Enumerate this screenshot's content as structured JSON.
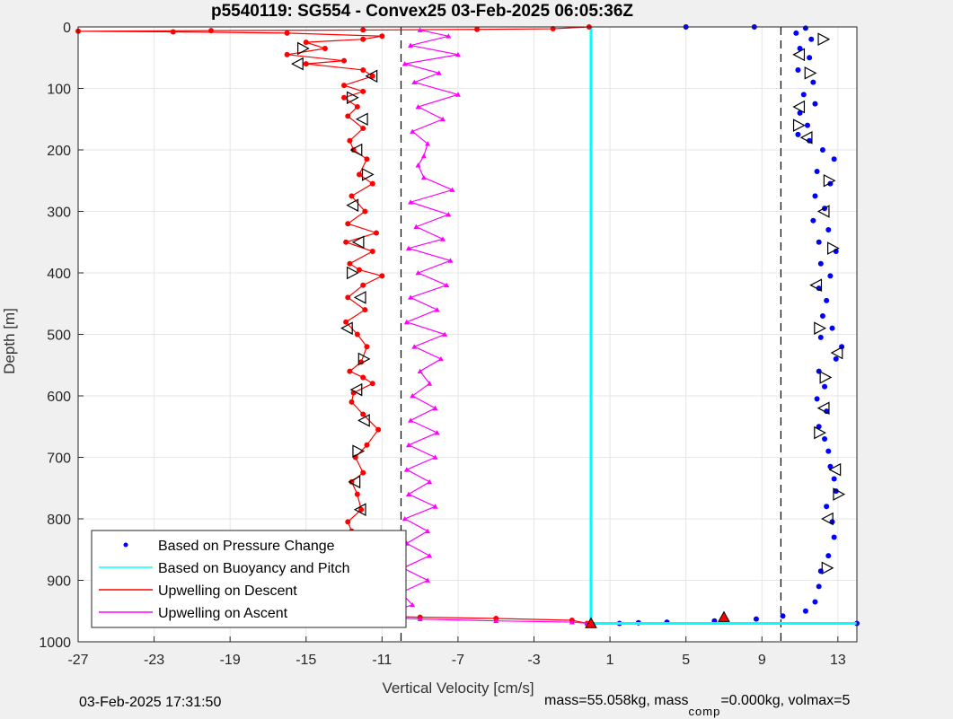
{
  "chart_data": {
    "type": "line",
    "title": "p5540119: SG554 - Convex25 03-Feb-2025 06:05:36Z",
    "xlabel": "Vertical Velocity [cm/s]",
    "ylabel": "Depth [m]",
    "xlim": [
      -27,
      14
    ],
    "ylim": [
      0,
      1000
    ],
    "y_reversed": true,
    "grid": true,
    "x_ticks": [
      -27,
      -23,
      -19,
      -15,
      -11,
      -7,
      -3,
      1,
      5,
      9,
      13
    ],
    "x_tick_labels": [
      "-27",
      "-23",
      "-19",
      "-15",
      "-11",
      "-7",
      "-3",
      "1",
      "5",
      "9",
      "13"
    ],
    "y_ticks": [
      0,
      100,
      200,
      300,
      400,
      500,
      600,
      700,
      800,
      900,
      1000
    ],
    "y_tick_labels": [
      "0",
      "100",
      "200",
      "300",
      "400",
      "500",
      "600",
      "700",
      "800",
      "900",
      "1000"
    ],
    "legend_position": "bottom-left",
    "reference_lines": [
      {
        "x": -10,
        "style": "dashed",
        "color": "#000000"
      },
      {
        "x": 10,
        "style": "dashed",
        "color": "#000000"
      }
    ],
    "legend": [
      {
        "label": "Based on Pressure Change",
        "marker": "dot",
        "color": "#0000ff"
      },
      {
        "label": "Based on Buoyancy and Pitch",
        "marker": "line",
        "color": "#00ffff"
      },
      {
        "label": "Upwelling on Descent",
        "marker": "line",
        "color": "#ff0000"
      },
      {
        "label": "Upwelling on Ascent",
        "marker": "line",
        "color": "#ff00ff"
      }
    ],
    "series": [
      {
        "name": "Based on Pressure Change",
        "color": "#0000ff",
        "style": "dots",
        "points": [
          [
            11.3,
            2
          ],
          [
            10.8,
            10
          ],
          [
            11.6,
            20
          ],
          [
            11.0,
            35
          ],
          [
            11.5,
            50
          ],
          [
            10.9,
            70
          ],
          [
            11.7,
            90
          ],
          [
            11.2,
            110
          ],
          [
            11.8,
            125
          ],
          [
            11.0,
            140
          ],
          [
            11.4,
            160
          ],
          [
            10.9,
            175
          ],
          [
            11.5,
            185
          ],
          [
            12.2,
            200
          ],
          [
            12.8,
            215
          ],
          [
            11.9,
            235
          ],
          [
            12.6,
            255
          ],
          [
            11.8,
            275
          ],
          [
            12.3,
            295
          ],
          [
            11.7,
            315
          ],
          [
            12.5,
            330
          ],
          [
            12.0,
            350
          ],
          [
            12.9,
            365
          ],
          [
            12.1,
            385
          ],
          [
            12.6,
            405
          ],
          [
            12.0,
            425
          ],
          [
            12.4,
            445
          ],
          [
            12.2,
            470
          ],
          [
            12.7,
            490
          ],
          [
            12.1,
            505
          ],
          [
            13.2,
            520
          ],
          [
            12.9,
            540
          ],
          [
            12.0,
            560
          ],
          [
            12.3,
            585
          ],
          [
            11.9,
            605
          ],
          [
            12.4,
            625
          ],
          [
            12.0,
            650
          ],
          [
            12.3,
            670
          ],
          [
            12.5,
            690
          ],
          [
            12.6,
            715
          ],
          [
            12.8,
            735
          ],
          [
            12.9,
            755
          ],
          [
            12.4,
            780
          ],
          [
            12.7,
            805
          ],
          [
            12.8,
            830
          ],
          [
            12.5,
            860
          ],
          [
            12.1,
            885
          ],
          [
            12.0,
            910
          ],
          [
            11.8,
            935
          ],
          [
            11.3,
            950
          ],
          [
            10.1,
            958
          ],
          [
            8.7,
            963
          ],
          [
            6.5,
            966
          ],
          [
            4.0,
            968
          ],
          [
            2.5,
            969
          ],
          [
            1.5,
            970
          ],
          [
            14.0,
            970
          ],
          [
            5.0,
            0
          ],
          [
            8.6,
            0
          ]
        ],
        "markers": [
          [
            12.2,
            20
          ],
          [
            11.0,
            45
          ],
          [
            11.5,
            75
          ],
          [
            11.0,
            130
          ],
          [
            10.9,
            160
          ],
          [
            11.4,
            180
          ],
          [
            12.5,
            250
          ],
          [
            12.3,
            300
          ],
          [
            12.7,
            360
          ],
          [
            11.9,
            420
          ],
          [
            12.0,
            490
          ],
          [
            13.0,
            530
          ],
          [
            12.3,
            570
          ],
          [
            12.3,
            620
          ],
          [
            12.0,
            660
          ],
          [
            12.9,
            720
          ],
          [
            13.0,
            760
          ],
          [
            12.5,
            800
          ],
          [
            12.4,
            880
          ]
        ]
      },
      {
        "name": "Based on Buoyancy and Pitch",
        "color": "#00ffff",
        "style": "line",
        "points": [
          [
            0,
            0
          ],
          [
            0,
            960
          ],
          [
            0,
            970
          ],
          [
            14.0,
            970
          ]
        ]
      },
      {
        "name": "Upwelling on Descent",
        "color": "#ff0000",
        "style": "line-dots",
        "points": [
          [
            -0.1,
            0
          ],
          [
            -2,
            3
          ],
          [
            -6,
            4
          ],
          [
            -12,
            5
          ],
          [
            -20,
            6
          ],
          [
            -27,
            7
          ],
          [
            -22,
            8
          ],
          [
            -16,
            10
          ],
          [
            -11,
            15
          ],
          [
            -12,
            20
          ],
          [
            -15,
            25
          ],
          [
            -14,
            35
          ],
          [
            -16,
            45
          ],
          [
            -13,
            55
          ],
          [
            -15,
            60
          ],
          [
            -12,
            70
          ],
          [
            -11.5,
            80
          ],
          [
            -13,
            95
          ],
          [
            -12,
            105
          ],
          [
            -13,
            115
          ],
          [
            -12.3,
            130
          ],
          [
            -12.8,
            145
          ],
          [
            -12.0,
            165
          ],
          [
            -12.7,
            185
          ],
          [
            -12.5,
            200
          ],
          [
            -11.8,
            215
          ],
          [
            -12.2,
            240
          ],
          [
            -11.5,
            255
          ],
          [
            -12.6,
            275
          ],
          [
            -11.9,
            300
          ],
          [
            -12.8,
            320
          ],
          [
            -11.3,
            335
          ],
          [
            -12.9,
            350
          ],
          [
            -11.5,
            365
          ],
          [
            -12.7,
            385
          ],
          [
            -12.2,
            395
          ],
          [
            -11.0,
            405
          ],
          [
            -12.0,
            420
          ],
          [
            -12.8,
            440
          ],
          [
            -11.9,
            460
          ],
          [
            -12.9,
            480
          ],
          [
            -12.3,
            500
          ],
          [
            -11.8,
            520
          ],
          [
            -12.1,
            545
          ],
          [
            -12.7,
            560
          ],
          [
            -12.0,
            570
          ],
          [
            -11.5,
            580
          ],
          [
            -12.5,
            595
          ],
          [
            -12.6,
            610
          ],
          [
            -12.0,
            630
          ],
          [
            -11.2,
            655
          ],
          [
            -11.8,
            680
          ],
          [
            -12.4,
            700
          ],
          [
            -12.0,
            725
          ],
          [
            -12.6,
            740
          ],
          [
            -12.3,
            760
          ],
          [
            -12.1,
            785
          ],
          [
            -12.8,
            805
          ],
          [
            -12.6,
            820
          ],
          [
            -11.3,
            840
          ],
          [
            -12.1,
            860
          ],
          [
            -12.9,
            880
          ],
          [
            -12.4,
            900
          ],
          [
            -12.7,
            920
          ],
          [
            -12.0,
            935
          ],
          [
            -11.6,
            945
          ],
          [
            -12.5,
            957
          ],
          [
            -9,
            960
          ],
          [
            -5,
            962
          ],
          [
            -1,
            965
          ],
          [
            -0.2,
            970
          ]
        ],
        "markers": [
          [
            -15.2,
            35
          ],
          [
            -15.4,
            60
          ],
          [
            -11.5,
            80
          ],
          [
            -12.6,
            115
          ],
          [
            -12.0,
            150
          ],
          [
            -12.3,
            200
          ],
          [
            -11.8,
            240
          ],
          [
            -12.5,
            290
          ],
          [
            -12.2,
            350
          ],
          [
            -12.6,
            400
          ],
          [
            -12.1,
            440
          ],
          [
            -12.8,
            490
          ],
          [
            -12.0,
            540
          ],
          [
            -12.3,
            590
          ],
          [
            -11.9,
            640
          ],
          [
            -12.3,
            690
          ],
          [
            -12.4,
            740
          ],
          [
            -12.1,
            785
          ],
          [
            -12.3,
            885
          ],
          [
            -12.5,
            960
          ]
        ]
      },
      {
        "name": "Upwelling on Ascent",
        "color": "#ff00ff",
        "style": "line-triangles",
        "points": [
          [
            -9,
            5
          ],
          [
            -7.5,
            15
          ],
          [
            -9.5,
            30
          ],
          [
            -7,
            45
          ],
          [
            -9.8,
            60
          ],
          [
            -8.0,
            75
          ],
          [
            -9.3,
            90
          ],
          [
            -7.0,
            110
          ],
          [
            -9.1,
            130
          ],
          [
            -7.8,
            150
          ],
          [
            -9.4,
            170
          ],
          [
            -8.6,
            190
          ],
          [
            -8.8,
            210
          ],
          [
            -9.1,
            225
          ],
          [
            -8.8,
            245
          ],
          [
            -7.3,
            265
          ],
          [
            -9.5,
            285
          ],
          [
            -7.5,
            305
          ],
          [
            -9.2,
            325
          ],
          [
            -7.8,
            345
          ],
          [
            -9.6,
            360
          ],
          [
            -7.4,
            380
          ],
          [
            -9.1,
            400
          ],
          [
            -7.6,
            420
          ],
          [
            -9.5,
            440
          ],
          [
            -8.1,
            460
          ],
          [
            -9.7,
            480
          ],
          [
            -7.7,
            500
          ],
          [
            -9.3,
            520
          ],
          [
            -7.9,
            540
          ],
          [
            -9.0,
            560
          ],
          [
            -8.5,
            580
          ],
          [
            -9.4,
            600
          ],
          [
            -8.2,
            620
          ],
          [
            -9.5,
            640
          ],
          [
            -8.1,
            660
          ],
          [
            -9.6,
            680
          ],
          [
            -8.2,
            700
          ],
          [
            -9.7,
            720
          ],
          [
            -8.5,
            740
          ],
          [
            -9.6,
            760
          ],
          [
            -8.2,
            780
          ],
          [
            -9.8,
            800
          ],
          [
            -8.6,
            820
          ],
          [
            -9.7,
            840
          ],
          [
            -8.5,
            860
          ],
          [
            -9.9,
            880
          ],
          [
            -8.6,
            900
          ],
          [
            -10.0,
            920
          ],
          [
            -9.4,
            940
          ],
          [
            -10.5,
            950
          ],
          [
            -12.3,
            958
          ],
          [
            -9,
            963
          ],
          [
            -5,
            966
          ],
          [
            -1,
            968
          ],
          [
            -0.2,
            970
          ]
        ]
      }
    ],
    "summary_markers": [
      {
        "x": 7.0,
        "y": 960,
        "shape": "triangle-up",
        "color": "#ff0000"
      },
      {
        "x": 0.0,
        "y": 970,
        "shape": "triangle-up",
        "color": "#ff0000"
      }
    ]
  },
  "footer": {
    "timestamp": "03-Feb-2025 17:31:50",
    "mass_prefix": "mass=55.058kg, mass",
    "mass_sub": "comp",
    "mass_suffix": "=0.000kg, volmax=5"
  }
}
